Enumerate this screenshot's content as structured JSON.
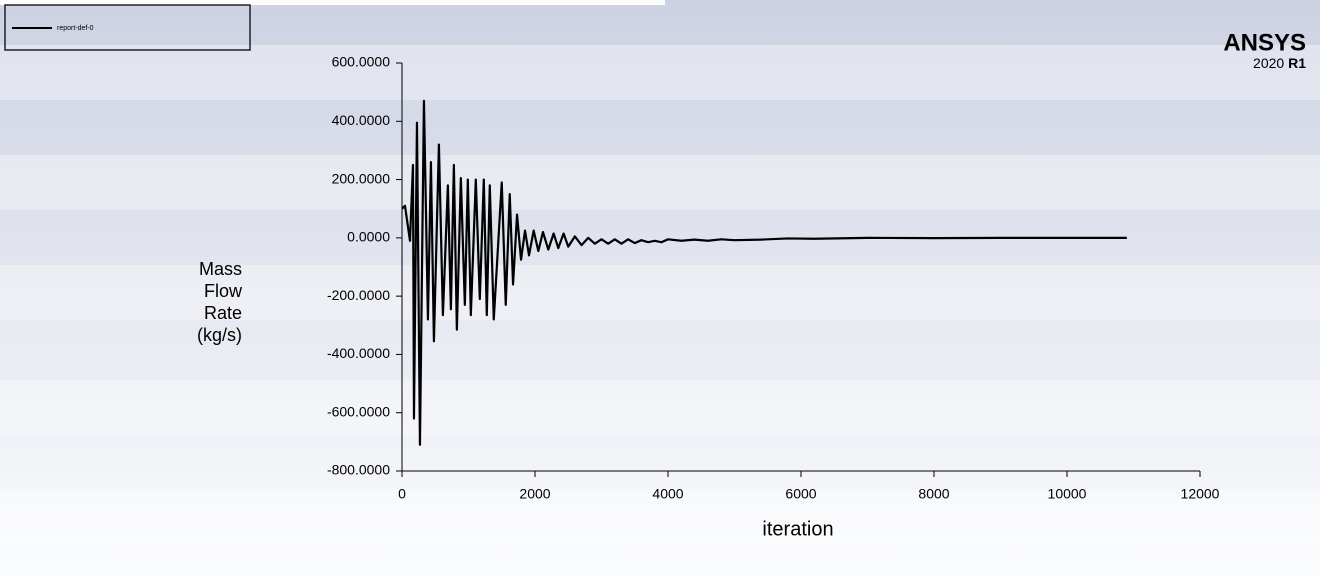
{
  "chart_data": {
    "type": "line",
    "brand": "ANSYS",
    "version": "2020",
    "release": "R1",
    "xlabel": "iteration",
    "ylabel": [
      "Mass",
      "Flow",
      "Rate",
      "(kg/s)"
    ],
    "xlim": [
      0,
      12000
    ],
    "xticks": [
      0,
      2000,
      4000,
      6000,
      8000,
      10000,
      12000
    ],
    "ylim": [
      -800,
      600
    ],
    "yticks": [
      {
        "value": 600,
        "label": "600.0000"
      },
      {
        "value": 400,
        "label": "400.0000"
      },
      {
        "value": 200,
        "label": "200.0000"
      },
      {
        "value": 0,
        "label": "0.0000"
      },
      {
        "value": -200,
        "label": "-200.0000"
      },
      {
        "value": -400,
        "label": "-400.0000"
      },
      {
        "value": -600,
        "label": "-600.0000"
      },
      {
        "value": -800,
        "label": "-800.0000"
      }
    ],
    "legend": "top-left",
    "series": [
      {
        "name": "report-def-0",
        "color": "#000000",
        "x": [
          0,
          45,
          120,
          165,
          180,
          225,
          270,
          330,
          390,
          435,
          480,
          555,
          615,
          690,
          735,
          780,
          825,
          885,
          945,
          990,
          1035,
          1110,
          1170,
          1230,
          1275,
          1320,
          1380,
          1500,
          1560,
          1620,
          1670,
          1730,
          1790,
          1850,
          1910,
          1980,
          2050,
          2120,
          2200,
          2280,
          2350,
          2430,
          2500,
          2600,
          2700,
          2800,
          2900,
          3000,
          3100,
          3200,
          3300,
          3400,
          3500,
          3600,
          3700,
          3800,
          3900,
          4000,
          4200,
          4400,
          4600,
          4800,
          5000,
          5400,
          5800,
          6200,
          7000,
          8000,
          9000,
          10000,
          10900
        ],
        "values": [
          100,
          110,
          -10,
          250,
          -620,
          395,
          -710,
          470,
          -280,
          260,
          -355,
          320,
          -265,
          180,
          -245,
          250,
          -315,
          205,
          -230,
          200,
          -265,
          200,
          -210,
          200,
          -265,
          180,
          -280,
          190,
          -230,
          150,
          -160,
          80,
          -75,
          25,
          -60,
          25,
          -45,
          20,
          -40,
          15,
          -35,
          15,
          -30,
          5,
          -25,
          0,
          -20,
          -5,
          -20,
          -5,
          -20,
          -5,
          -18,
          -8,
          -15,
          -10,
          -15,
          -5,
          -10,
          -6,
          -10,
          -5,
          -8,
          -6,
          -2,
          -3,
          0,
          -1,
          0,
          0,
          0
        ]
      }
    ]
  }
}
